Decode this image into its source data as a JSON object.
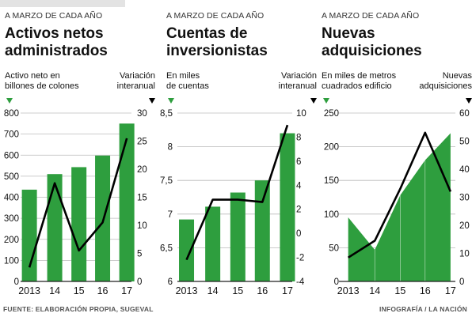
{
  "footer": {
    "source": "FUENTE: ELABORACIÓN PROPIA, SUGEVAL",
    "credit": "INFOGRAFÍA / LA NACIÓN"
  },
  "colors": {
    "bar": "#2e9e3e",
    "area": "#2e9e3e",
    "line": "#000000",
    "grid": "#bbbbbb",
    "leftMarker": "#2e9e3e",
    "rightMarker": "#000000"
  },
  "chart_data": [
    {
      "type": "bar",
      "kicker": "A MARZO DE CADA AÑO",
      "title": "Activos netos administrados",
      "left_axis_label": "Activo neto en\nbillones de colones",
      "right_axis_label": "Variación\ninteranual",
      "categories": [
        "2013",
        "14",
        "15",
        "16",
        "17"
      ],
      "left_ylim": [
        0,
        800
      ],
      "left_ticks": [
        0,
        100,
        200,
        300,
        400,
        500,
        600,
        700,
        800
      ],
      "right_ylim": [
        0,
        30
      ],
      "right_ticks": [
        0,
        5,
        10,
        15,
        20,
        25,
        30
      ],
      "series": [
        {
          "values": [
            436,
            510,
            543,
            598,
            750
          ],
          "axis": "left",
          "kind": "bar"
        },
        {
          "values": [
            2.5,
            17.5,
            5.5,
            10.5,
            25.5
          ],
          "axis": "right",
          "kind": "line"
        }
      ]
    },
    {
      "type": "bar",
      "kicker": "A MARZO DE CADA AÑO",
      "title": "Cuentas de inversionistas",
      "left_axis_label": "En miles\nde cuentas",
      "right_axis_label": "Variación\ninteranual",
      "categories": [
        "2013",
        "14",
        "15",
        "16",
        "17"
      ],
      "left_ylim": [
        6,
        8.5
      ],
      "left_ticks": [
        6,
        6.5,
        7,
        7.5,
        8,
        8.5
      ],
      "left_tick_labels": [
        "6",
        "6,5",
        "7",
        "7,5",
        "8",
        "8,5"
      ],
      "right_ylim": [
        -4,
        10
      ],
      "right_ticks": [
        -4,
        -2,
        0,
        2,
        4,
        6,
        8,
        10
      ],
      "series": [
        {
          "values": [
            6.92,
            7.11,
            7.32,
            7.5,
            8.2
          ],
          "axis": "left",
          "kind": "bar"
        },
        {
          "values": [
            -2.2,
            2.8,
            2.8,
            2.6,
            9.0
          ],
          "axis": "right",
          "kind": "line"
        }
      ]
    },
    {
      "type": "area",
      "kicker": "A MARZO DE CADA AÑO",
      "title": "Nuevas adquisiciones",
      "left_axis_label": "En miles de metros\ncuadrados edificio",
      "right_axis_label": "Nuevas\nadquisiciones",
      "categories": [
        "2013",
        "14",
        "15",
        "16",
        "17"
      ],
      "left_ylim": [
        0,
        250
      ],
      "left_ticks": [
        0,
        50,
        100,
        150,
        200,
        250
      ],
      "right_ylim": [
        0,
        60
      ],
      "right_ticks": [
        0,
        10,
        20,
        30,
        40,
        50,
        60
      ],
      "series": [
        {
          "values": [
            95,
            47,
            128,
            180,
            220
          ],
          "axis": "left",
          "kind": "area"
        },
        {
          "values": [
            8.5,
            14.5,
            33,
            53,
            32
          ],
          "axis": "right",
          "kind": "line"
        }
      ]
    }
  ]
}
